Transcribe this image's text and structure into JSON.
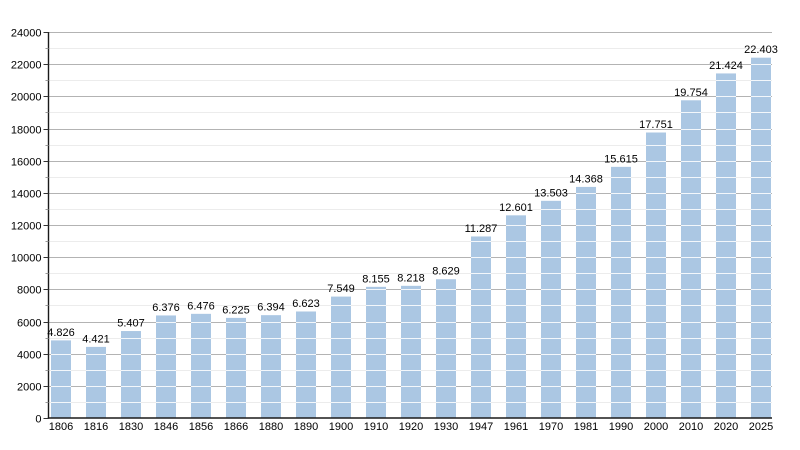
{
  "chart_data": {
    "type": "bar",
    "title": "",
    "xlabel": "",
    "ylabel": "",
    "categories": [
      "1806",
      "1816",
      "1830",
      "1846",
      "1856",
      "1866",
      "1880",
      "1890",
      "1900",
      "1910",
      "1920",
      "1930",
      "1947",
      "1961",
      "1970",
      "1981",
      "1990",
      "2000",
      "2010",
      "2020",
      "2025"
    ],
    "values": [
      4826,
      4421,
      5407,
      6376,
      6476,
      6225,
      6394,
      6623,
      7549,
      8155,
      8218,
      8629,
      11287,
      12601,
      13503,
      14368,
      15615,
      17751,
      19754,
      21424,
      22403
    ],
    "value_labels": [
      "4.826",
      "4.421",
      "5.407",
      "6.376",
      "6.476",
      "6.225",
      "6.394",
      "6.623",
      "7.549",
      "8.155",
      "8.218",
      "8.629",
      "11.287",
      "12.601",
      "13.503",
      "14.368",
      "15.615",
      "17.751",
      "19.754",
      "21.424",
      "22.403"
    ],
    "ylim": [
      0,
      24000
    ],
    "y_major_step": 2000,
    "y_minor_step": 1000,
    "y_tick_labels": [
      "0",
      "2000",
      "4000",
      "6000",
      "8000",
      "10000",
      "12000",
      "14000",
      "16000",
      "18000",
      "20000",
      "22000",
      "24000"
    ],
    "grid": true,
    "legend_position": "none",
    "colors": {
      "bar_fill": "#abc7e3",
      "bar_stripe": "rgba(255,255,255,0.85)",
      "major_grid": "#b3b3b3",
      "minor_grid": "#ececec",
      "axis": "#1a1a1a",
      "major_tick": "#333333",
      "minor_tick": "#999999",
      "text": "#000000",
      "background": "#ffffff"
    }
  }
}
